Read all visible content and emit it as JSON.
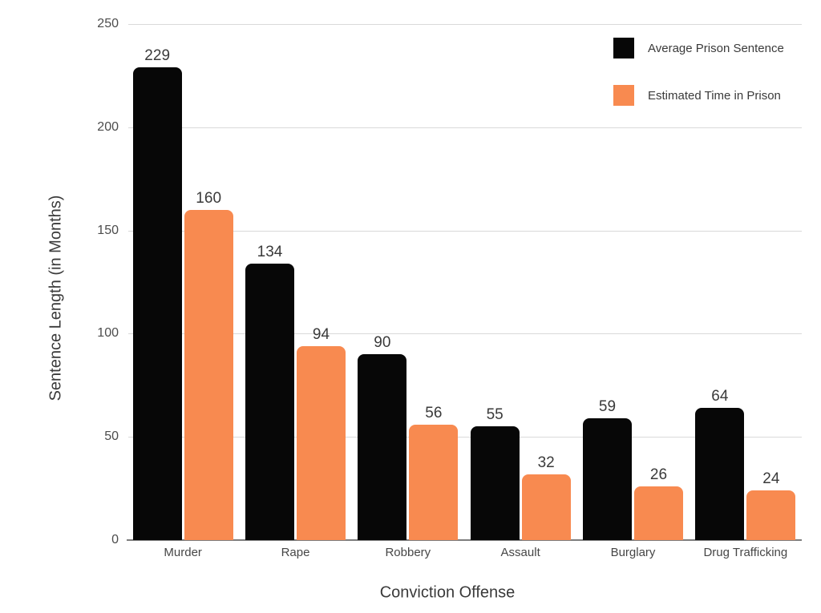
{
  "chart_data": {
    "type": "bar",
    "title": "",
    "xlabel": "Conviction Offense",
    "ylabel": "Sentence Length (in Months)",
    "categories": [
      "Murder",
      "Rape",
      "Robbery",
      "Assault",
      "Burglary",
      "Drug Trafficking"
    ],
    "series": [
      {
        "name": "Average Prison Sentence",
        "color": "#070707",
        "values": [
          229,
          134,
          90,
          55,
          59,
          64
        ]
      },
      {
        "name": "Estimated Time in Prison",
        "color": "#F88A50",
        "values": [
          160,
          94,
          56,
          32,
          26,
          24
        ]
      }
    ],
    "ylim": [
      0,
      250
    ],
    "yticks": [
      0,
      50,
      100,
      150,
      200,
      250
    ],
    "grid": true,
    "legend_position": "top-right",
    "value_labels": true
  },
  "colors": {
    "gridline": "#d9d9d9",
    "baseline": "#7d7d7d",
    "text": "#3a3a3a"
  }
}
